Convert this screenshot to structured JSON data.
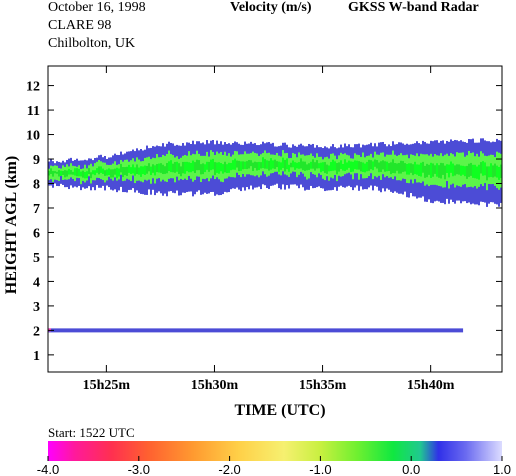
{
  "header": {
    "date": "October  16, 1998",
    "campaign": "CLARE 98",
    "location": "Chilbolton, UK",
    "quantity": "Velocity (m/s)",
    "instrument": "GKSS  W-band Radar"
  },
  "start_label": "Start: 1522 UTC",
  "colors": {
    "blue": "#4c4cd6",
    "green": "#22e62a",
    "light_green": "#5cf54a",
    "bright_green": "#10ff20",
    "pink": "#ff44bb"
  },
  "chart_data": {
    "type": "heatmap",
    "xlabel": "TIME (UTC)",
    "ylabel": "HEIGHT AGL (km)",
    "x_ticks": [
      "15h25m",
      "15h30m",
      "15h35m",
      "15h40m"
    ],
    "x_tick_values_min": [
      25,
      30,
      35,
      40
    ],
    "xlim_min": [
      22.3,
      43.3
    ],
    "y_ticks": [
      "1",
      "2",
      "3",
      "4",
      "5",
      "6",
      "7",
      "8",
      "9",
      "10",
      "11",
      "12"
    ],
    "ylim": [
      0.3,
      12.8
    ],
    "colorbar": {
      "label_range": [
        -4.0,
        1.0
      ],
      "ticks": [
        "-4.0",
        "-3.0",
        "-2.0",
        "-1.0",
        "0.0",
        "1.0"
      ]
    },
    "cloud_layer": {
      "description": "echo band",
      "time_min": [
        22.3,
        25,
        27.5,
        30,
        32.5,
        35,
        37.5,
        40,
        43.3
      ],
      "top_km": [
        8.9,
        9.1,
        9.6,
        9.7,
        9.6,
        9.5,
        9.6,
        9.7,
        9.8
      ],
      "base_km": [
        7.9,
        7.8,
        7.6,
        7.6,
        7.9,
        7.8,
        7.8,
        7.3,
        7.1
      ],
      "velocity_core_ms": -1.0,
      "velocity_edge_ms": 0.3
    },
    "low_layer": {
      "time_min": [
        22.3,
        41.5
      ],
      "height_km": 2.0,
      "velocity_ms": 0.3
    }
  }
}
